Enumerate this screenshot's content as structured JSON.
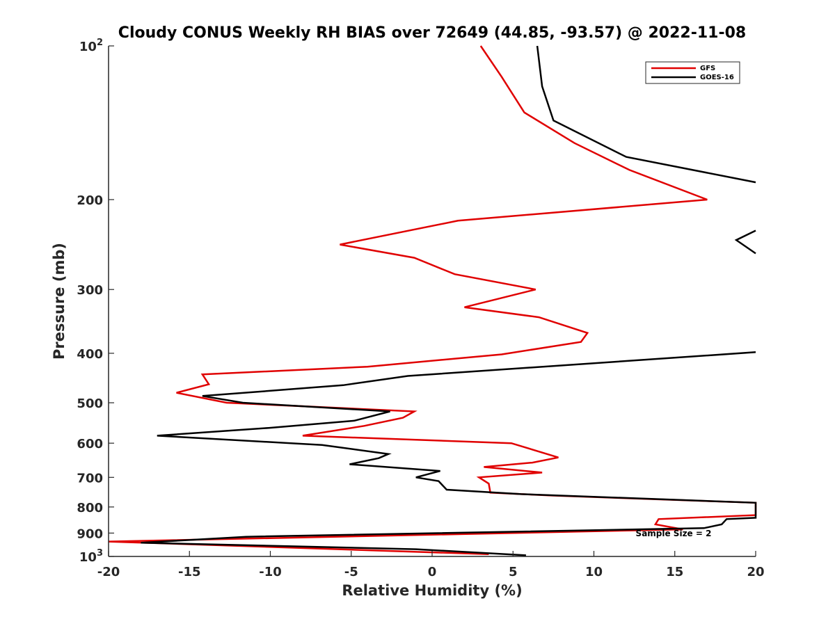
{
  "chart_data": {
    "type": "line",
    "title": "Cloudy CONUS Weekly RH BIAS over 72649 (44.85, -93.57) @ 2022-11-08",
    "xlabel": "Relative Humidity (%)",
    "ylabel": "Pressure (mb)",
    "xlim": [
      -20,
      20
    ],
    "ylim": [
      100,
      1000
    ],
    "y_scale": "log",
    "y_reversed": true,
    "grid": false,
    "legend_placement": "top-right",
    "x_ticks": [
      -20,
      -15,
      -10,
      -5,
      0,
      5,
      10,
      15,
      20
    ],
    "x_tick_labels": [
      "-20",
      "-15",
      "-10",
      "-5",
      "0",
      "5",
      "10",
      "15",
      "20"
    ],
    "y_ticks": [
      100,
      200,
      300,
      400,
      500,
      600,
      700,
      800,
      900,
      1000
    ],
    "y_tick_labels": [
      {
        "base": "10",
        "exp": "2"
      },
      {
        "base": "200",
        "exp": ""
      },
      {
        "base": "300",
        "exp": ""
      },
      {
        "base": "400",
        "exp": ""
      },
      {
        "base": "500",
        "exp": ""
      },
      {
        "base": "600",
        "exp": ""
      },
      {
        "base": "700",
        "exp": ""
      },
      {
        "base": "800",
        "exp": ""
      },
      {
        "base": "900",
        "exp": ""
      },
      {
        "base": "10",
        "exp": "3"
      }
    ],
    "annotation": "Sample Size = 2",
    "series": [
      {
        "name": "GFS",
        "color": "#e00000",
        "points": [
          [
            3.0,
            100
          ],
          [
            4.3,
            115
          ],
          [
            5.7,
            135
          ],
          [
            8.8,
            155
          ],
          [
            12.2,
            175
          ],
          [
            17.0,
            200
          ],
          [
            1.6,
            220
          ],
          [
            -5.7,
            245
          ],
          [
            -1.1,
            260
          ],
          [
            1.4,
            280
          ],
          [
            6.4,
            300
          ],
          [
            2.0,
            325
          ],
          [
            6.6,
            340
          ],
          [
            9.6,
            365
          ],
          [
            9.2,
            380
          ],
          [
            4.3,
            402
          ],
          [
            -4.0,
            425
          ],
          [
            -14.2,
            440
          ],
          [
            -13.8,
            460
          ],
          [
            -15.8,
            478
          ],
          [
            -12.7,
            500
          ],
          [
            -1.1,
            520
          ],
          [
            -1.8,
            535
          ],
          [
            -4.2,
            555
          ],
          [
            -8.0,
            580
          ],
          [
            4.9,
            600
          ],
          [
            7.8,
            640
          ],
          [
            6.2,
            655
          ],
          [
            3.2,
            668
          ],
          [
            6.8,
            685
          ],
          [
            2.9,
            700
          ],
          [
            3.5,
            720
          ],
          [
            3.6,
            750
          ],
          [
            7.5,
            760
          ],
          [
            20.0,
            785
          ],
          [
            20.0,
            830
          ],
          [
            14.0,
            845
          ],
          [
            13.8,
            865
          ],
          [
            15.5,
            885
          ],
          [
            -20.0,
            935
          ],
          [
            3.5,
            990
          ]
        ]
      },
      {
        "name": "GOES-16",
        "color": "#000000",
        "points": [
          [
            6.5,
            100
          ],
          [
            6.8,
            120
          ],
          [
            7.5,
            140
          ],
          [
            12.0,
            165
          ],
          [
            20.0,
            185
          ],
          [
            null,
            null
          ],
          [
            20.0,
            230
          ],
          [
            18.8,
            240
          ],
          [
            20.0,
            255
          ],
          [
            null,
            null
          ],
          [
            20.0,
            398
          ],
          [
            -1.5,
            443
          ],
          [
            -5.5,
            462
          ],
          [
            -14.2,
            485
          ],
          [
            -11.7,
            500
          ],
          [
            -2.6,
            520
          ],
          [
            -4.8,
            542
          ],
          [
            -10.1,
            560
          ],
          [
            -17.0,
            580
          ],
          [
            -6.8,
            605
          ],
          [
            -2.7,
            630
          ],
          [
            -3.3,
            642
          ],
          [
            -5.1,
            660
          ],
          [
            0.5,
            680
          ],
          [
            -1.0,
            700
          ],
          [
            0.4,
            712
          ],
          [
            0.9,
            740
          ],
          [
            5.5,
            755
          ],
          [
            20.0,
            785
          ],
          [
            20.0,
            840
          ],
          [
            18.2,
            845
          ],
          [
            17.9,
            865
          ],
          [
            16.8,
            880
          ],
          [
            -11.5,
            915
          ],
          [
            -18.0,
            940
          ],
          [
            -1.0,
            968
          ],
          [
            5.8,
            995
          ]
        ]
      }
    ]
  }
}
